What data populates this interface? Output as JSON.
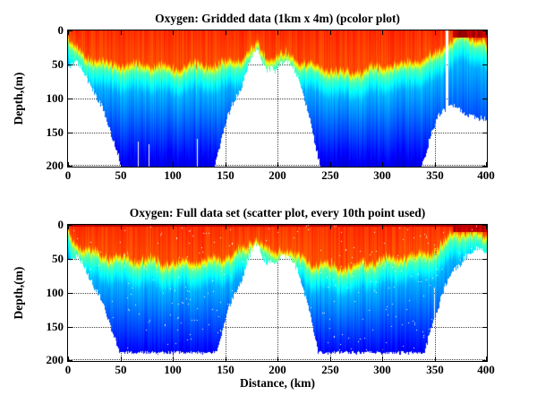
{
  "figure": {
    "background": "#ffffff",
    "text_color": "#000000",
    "grid_style": "dotted"
  },
  "chart_data": [
    {
      "type": "pcolor",
      "title": "Oxygen: Gridded data (1km x 4m) (pcolor plot)",
      "xlabel": "",
      "ylabel": "Depth,(m)",
      "xlim": [
        0,
        400
      ],
      "ylim": [
        0,
        200
      ],
      "y_axis_direction": "reversed",
      "xticks": [
        0,
        50,
        100,
        150,
        200,
        250,
        300,
        350,
        400
      ],
      "yticks": [
        0,
        50,
        100,
        150,
        200
      ],
      "colormap": "jet",
      "grid": "on",
      "noise_seed": 1,
      "max_data_depth_m": 200,
      "surface_dark_line": false,
      "surface_high_oxygen_zone_km": [
        368,
        400
      ],
      "missing_data_columns": [
        {
          "km": 67,
          "halfwidth_km": 0.45,
          "from_m": 163,
          "to_m": 200
        },
        {
          "km": 77,
          "halfwidth_km": 0.45,
          "from_m": 167,
          "to_m": 200
        },
        {
          "km": 123,
          "halfwidth_km": 0.45,
          "from_m": 160,
          "to_m": 200
        },
        {
          "km": 362,
          "halfwidth_km": 1.2,
          "from_m": 0,
          "to_m": 200
        }
      ],
      "seafloor_km_m": [
        [
          0,
          55
        ],
        [
          4,
          48
        ],
        [
          8,
          47
        ],
        [
          12,
          52
        ],
        [
          16,
          64
        ],
        [
          20,
          78
        ],
        [
          24,
          90
        ],
        [
          28,
          100
        ],
        [
          32,
          112
        ],
        [
          36,
          128
        ],
        [
          40,
          148
        ],
        [
          44,
          166
        ],
        [
          48,
          185
        ],
        [
          51,
          200
        ],
        [
          140,
          200
        ],
        [
          144,
          178
        ],
        [
          148,
          150
        ],
        [
          152,
          128
        ],
        [
          156,
          112
        ],
        [
          160,
          100
        ],
        [
          164,
          90
        ],
        [
          168,
          72
        ],
        [
          172,
          50
        ],
        [
          176,
          36
        ],
        [
          180,
          26
        ],
        [
          183,
          32
        ],
        [
          186,
          48
        ],
        [
          190,
          58
        ],
        [
          194,
          54
        ],
        [
          198,
          58
        ],
        [
          202,
          50
        ],
        [
          206,
          45
        ],
        [
          210,
          47
        ],
        [
          214,
          52
        ],
        [
          218,
          62
        ],
        [
          222,
          80
        ],
        [
          226,
          100
        ],
        [
          230,
          124
        ],
        [
          234,
          152
        ],
        [
          238,
          180
        ],
        [
          241,
          200
        ],
        [
          338,
          200
        ],
        [
          342,
          182
        ],
        [
          346,
          158
        ],
        [
          350,
          140
        ],
        [
          354,
          126
        ],
        [
          358,
          120
        ],
        [
          362,
          115
        ],
        [
          365,
          108
        ],
        [
          370,
          112
        ],
        [
          375,
          116
        ],
        [
          380,
          122
        ],
        [
          385,
          126
        ],
        [
          390,
          130
        ],
        [
          395,
          128
        ],
        [
          400,
          130
        ]
      ],
      "oxycline_km_m": [
        [
          0,
          20
        ],
        [
          6,
          30
        ],
        [
          12,
          38
        ],
        [
          18,
          45
        ],
        [
          25,
          50
        ],
        [
          35,
          55
        ],
        [
          45,
          58
        ],
        [
          55,
          60
        ],
        [
          65,
          62
        ],
        [
          75,
          61
        ],
        [
          85,
          62
        ],
        [
          95,
          65
        ],
        [
          105,
          64
        ],
        [
          115,
          61
        ],
        [
          125,
          59
        ],
        [
          135,
          58
        ],
        [
          145,
          56
        ],
        [
          155,
          53
        ],
        [
          165,
          48
        ],
        [
          172,
          40
        ],
        [
          178,
          33
        ],
        [
          182,
          33
        ],
        [
          186,
          42
        ],
        [
          192,
          50
        ],
        [
          198,
          52
        ],
        [
          203,
          46
        ],
        [
          208,
          46
        ],
        [
          213,
          51
        ],
        [
          220,
          56
        ],
        [
          230,
          61
        ],
        [
          240,
          64
        ],
        [
          250,
          65
        ],
        [
          260,
          67
        ],
        [
          270,
          68
        ],
        [
          280,
          66
        ],
        [
          290,
          63
        ],
        [
          300,
          61
        ],
        [
          310,
          59
        ],
        [
          320,
          58
        ],
        [
          330,
          57
        ],
        [
          340,
          54
        ],
        [
          348,
          48
        ],
        [
          354,
          42
        ],
        [
          360,
          33
        ],
        [
          364,
          26
        ],
        [
          368,
          19
        ],
        [
          374,
          16
        ],
        [
          380,
          16
        ],
        [
          386,
          18
        ],
        [
          392,
          20
        ],
        [
          400,
          25
        ]
      ]
    },
    {
      "type": "scatter",
      "title": "Oxygen: Full data set (scatter plot, every 10th point used)",
      "xlabel": "Distance, (km)",
      "ylabel": "Depth,(m)",
      "xlim": [
        0,
        400
      ],
      "ylim": [
        0,
        200
      ],
      "y_axis_direction": "reversed",
      "xticks": [
        0,
        50,
        100,
        150,
        200,
        250,
        300,
        350,
        400
      ],
      "yticks": [
        0,
        50,
        100,
        150,
        200
      ],
      "colormap": "jet",
      "grid": "on",
      "noise_seed": 2,
      "max_data_depth_m": 188,
      "surface_dark_line": true,
      "surface_high_oxygen_zone_km": [
        368,
        400
      ],
      "missing_data_columns": [
        {
          "km": 350,
          "halfwidth_km": 0.5,
          "from_m": 92,
          "to_m": 136
        }
      ],
      "seafloor_km_m": [
        [
          0,
          55
        ],
        [
          4,
          48
        ],
        [
          8,
          47
        ],
        [
          12,
          52
        ],
        [
          16,
          64
        ],
        [
          20,
          78
        ],
        [
          24,
          90
        ],
        [
          28,
          100
        ],
        [
          32,
          112
        ],
        [
          36,
          128
        ],
        [
          40,
          148
        ],
        [
          44,
          166
        ],
        [
          48,
          185
        ],
        [
          51,
          200
        ],
        [
          140,
          200
        ],
        [
          144,
          178
        ],
        [
          148,
          150
        ],
        [
          152,
          128
        ],
        [
          156,
          112
        ],
        [
          160,
          100
        ],
        [
          164,
          90
        ],
        [
          168,
          72
        ],
        [
          172,
          50
        ],
        [
          176,
          36
        ],
        [
          180,
          26
        ],
        [
          183,
          32
        ],
        [
          186,
          48
        ],
        [
          190,
          58
        ],
        [
          194,
          54
        ],
        [
          198,
          58
        ],
        [
          202,
          50
        ],
        [
          206,
          45
        ],
        [
          210,
          47
        ],
        [
          214,
          52
        ],
        [
          218,
          62
        ],
        [
          222,
          80
        ],
        [
          226,
          100
        ],
        [
          230,
          124
        ],
        [
          234,
          152
        ],
        [
          238,
          180
        ],
        [
          241,
          200
        ],
        [
          338,
          200
        ],
        [
          342,
          182
        ],
        [
          346,
          158
        ],
        [
          350,
          138
        ],
        [
          354,
          124
        ],
        [
          358,
          100
        ],
        [
          362,
          85
        ],
        [
          366,
          74
        ],
        [
          370,
          65
        ],
        [
          374,
          60
        ],
        [
          378,
          50
        ],
        [
          382,
          44
        ],
        [
          386,
          38
        ],
        [
          390,
          34
        ],
        [
          394,
          34
        ],
        [
          398,
          38
        ],
        [
          400,
          42
        ]
      ],
      "oxycline_km_m": [
        [
          0,
          20
        ],
        [
          6,
          30
        ],
        [
          12,
          38
        ],
        [
          18,
          45
        ],
        [
          25,
          50
        ],
        [
          35,
          55
        ],
        [
          45,
          58
        ],
        [
          55,
          60
        ],
        [
          65,
          62
        ],
        [
          75,
          61
        ],
        [
          85,
          62
        ],
        [
          95,
          65
        ],
        [
          105,
          64
        ],
        [
          115,
          61
        ],
        [
          125,
          59
        ],
        [
          135,
          58
        ],
        [
          145,
          56
        ],
        [
          155,
          53
        ],
        [
          165,
          48
        ],
        [
          172,
          40
        ],
        [
          178,
          33
        ],
        [
          182,
          33
        ],
        [
          186,
          42
        ],
        [
          192,
          50
        ],
        [
          198,
          52
        ],
        [
          203,
          46
        ],
        [
          208,
          46
        ],
        [
          213,
          51
        ],
        [
          220,
          56
        ],
        [
          230,
          61
        ],
        [
          240,
          64
        ],
        [
          250,
          65
        ],
        [
          260,
          67
        ],
        [
          270,
          68
        ],
        [
          280,
          66
        ],
        [
          290,
          63
        ],
        [
          300,
          61
        ],
        [
          310,
          59
        ],
        [
          320,
          58
        ],
        [
          330,
          57
        ],
        [
          340,
          54
        ],
        [
          348,
          48
        ],
        [
          354,
          42
        ],
        [
          360,
          33
        ],
        [
          364,
          26
        ],
        [
          368,
          19
        ],
        [
          374,
          16
        ],
        [
          380,
          16
        ],
        [
          386,
          18
        ],
        [
          392,
          20
        ],
        [
          400,
          25
        ]
      ]
    }
  ]
}
